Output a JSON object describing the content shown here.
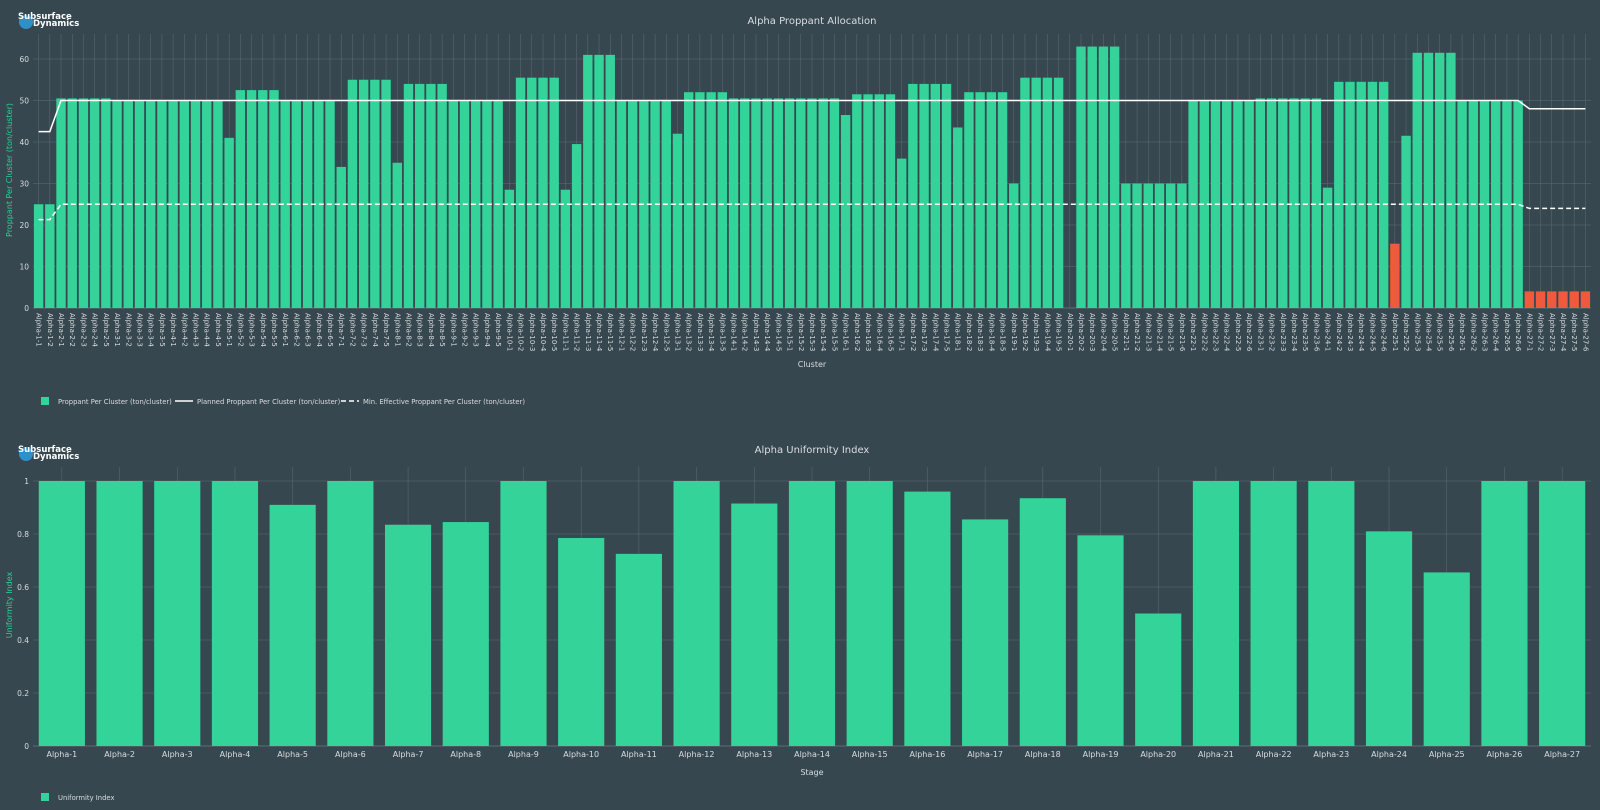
{
  "brand": {
    "line1": "Subsurface",
    "line2": "Dynamics",
    "logo_icon": "globe-logo-icon"
  },
  "colors": {
    "background": "#37474f",
    "bar": "#34d399",
    "bar_low": "#ef5a3c",
    "planned_line": "#ffffff",
    "grid": "#5d6e77",
    "title": "#d9dde0",
    "axis_title": "#2ecc95"
  },
  "chart_data": [
    {
      "type": "bar",
      "title": "Alpha Proppant Allocation",
      "xlabel": "Cluster",
      "ylabel": "Proppant Per Cluster (ton/cluster)",
      "ylim": [
        0,
        66
      ],
      "yticks": [
        0,
        10,
        20,
        30,
        40,
        50,
        60
      ],
      "grid": true,
      "legend_placement": "bottom-left",
      "stages": [
        {
          "stage": 1,
          "n": 2,
          "values": [
            25,
            25
          ],
          "planned": 42.5,
          "min_effective": 21.3
        },
        {
          "stage": 2,
          "n": 5,
          "values": [
            50.5,
            50.5,
            50.5,
            50.5,
            50.5
          ],
          "planned": 50,
          "min_effective": 25
        },
        {
          "stage": 3,
          "n": 5,
          "values": [
            50,
            50,
            50,
            50,
            50
          ],
          "planned": 50,
          "min_effective": 25
        },
        {
          "stage": 4,
          "n": 5,
          "values": [
            50,
            50,
            50,
            50,
            50
          ],
          "planned": 50,
          "min_effective": 25
        },
        {
          "stage": 5,
          "n": 5,
          "values": [
            41,
            52.5,
            52.5,
            52.5,
            52.5
          ],
          "planned": 50,
          "min_effective": 25
        },
        {
          "stage": 6,
          "n": 5,
          "values": [
            50,
            50,
            50,
            50,
            50
          ],
          "planned": 50,
          "min_effective": 25
        },
        {
          "stage": 7,
          "n": 5,
          "values": [
            34,
            55,
            55,
            55,
            55
          ],
          "planned": 50,
          "min_effective": 25
        },
        {
          "stage": 8,
          "n": 5,
          "values": [
            35,
            54,
            54,
            54,
            54
          ],
          "planned": 50,
          "min_effective": 25
        },
        {
          "stage": 9,
          "n": 5,
          "values": [
            50,
            50,
            50,
            50,
            50
          ],
          "planned": 50,
          "min_effective": 25
        },
        {
          "stage": 10,
          "n": 5,
          "values": [
            28.5,
            55.5,
            55.5,
            55.5,
            55.5
          ],
          "planned": 50,
          "min_effective": 25
        },
        {
          "stage": 11,
          "n": 5,
          "values": [
            28.5,
            39.5,
            61,
            61,
            61
          ],
          "planned": 50,
          "min_effective": 25
        },
        {
          "stage": 12,
          "n": 5,
          "values": [
            50,
            50,
            50,
            50,
            50
          ],
          "planned": 50,
          "min_effective": 25
        },
        {
          "stage": 13,
          "n": 5,
          "values": [
            42,
            52,
            52,
            52,
            52
          ],
          "planned": 50,
          "min_effective": 25
        },
        {
          "stage": 14,
          "n": 5,
          "values": [
            50.5,
            50.5,
            50.5,
            50.5,
            50.5
          ],
          "planned": 50,
          "min_effective": 25
        },
        {
          "stage": 15,
          "n": 5,
          "values": [
            50.5,
            50.5,
            50.5,
            50.5,
            50.5
          ],
          "planned": 50,
          "min_effective": 25
        },
        {
          "stage": 16,
          "n": 5,
          "values": [
            46.5,
            51.5,
            51.5,
            51.5,
            51.5
          ],
          "planned": 50,
          "min_effective": 25
        },
        {
          "stage": 17,
          "n": 5,
          "values": [
            36,
            54,
            54,
            54,
            54
          ],
          "planned": 50,
          "min_effective": 25
        },
        {
          "stage": 18,
          "n": 5,
          "values": [
            43.5,
            52,
            52,
            52,
            52
          ],
          "planned": 50,
          "min_effective": 25
        },
        {
          "stage": 19,
          "n": 5,
          "values": [
            30,
            55.5,
            55.5,
            55.5,
            55.5
          ],
          "planned": 50,
          "min_effective": 25
        },
        {
          "stage": 20,
          "n": 5,
          "values": [
            0,
            63,
            63,
            63,
            63
          ],
          "planned": 50,
          "min_effective": 25
        },
        {
          "stage": 21,
          "n": 6,
          "values": [
            30,
            30,
            30,
            30,
            30,
            30
          ],
          "planned": 50,
          "min_effective": 25
        },
        {
          "stage": 22,
          "n": 6,
          "values": [
            50,
            50,
            50,
            50,
            50,
            50
          ],
          "planned": 50,
          "min_effective": 25
        },
        {
          "stage": 23,
          "n": 6,
          "values": [
            50.5,
            50.5,
            50.5,
            50.5,
            50.5,
            50.5
          ],
          "planned": 50,
          "min_effective": 25
        },
        {
          "stage": 24,
          "n": 6,
          "values": [
            29,
            54.5,
            54.5,
            54.5,
            54.5,
            54.5
          ],
          "planned": 50,
          "min_effective": 25
        },
        {
          "stage": 25,
          "n": 6,
          "values": [
            15.5,
            41.5,
            61.5,
            61.5,
            61.5,
            61.5
          ],
          "planned": 50,
          "min_effective": 25
        },
        {
          "stage": 26,
          "n": 6,
          "values": [
            50,
            50,
            50,
            50,
            50,
            50
          ],
          "planned": 50,
          "min_effective": 25
        },
        {
          "stage": 27,
          "n": 6,
          "values": [
            4,
            4,
            4,
            4,
            4,
            4
          ],
          "planned": 48,
          "min_effective": 24
        }
      ],
      "legend": [
        {
          "label": "Proppant Per Cluster (ton/cluster)",
          "kind": "bar"
        },
        {
          "label": "Planned Proppant Per Cluster (ton/cluster)",
          "kind": "solid-line"
        },
        {
          "label": "Min. Effective Proppant Per Cluster (ton/cluster)",
          "kind": "dashed-line"
        }
      ]
    },
    {
      "type": "bar",
      "title": "Alpha Uniformity Index",
      "xlabel": "Stage",
      "ylabel": "Uniformity Index",
      "ylim": [
        0,
        1.05
      ],
      "yticks": [
        0,
        0.2,
        0.4,
        0.6,
        0.8,
        1
      ],
      "ytick_labels": [
        "0",
        "0.2",
        "0.4",
        "0.6",
        "0.8",
        "1"
      ],
      "grid": true,
      "legend_placement": "bottom-left",
      "categories": [
        "Alpha-1",
        "Alpha-2",
        "Alpha-3",
        "Alpha-4",
        "Alpha-5",
        "Alpha-6",
        "Alpha-7",
        "Alpha-8",
        "Alpha-9",
        "Alpha-10",
        "Alpha-11",
        "Alpha-12",
        "Alpha-13",
        "Alpha-14",
        "Alpha-15",
        "Alpha-16",
        "Alpha-17",
        "Alpha-18",
        "Alpha-19",
        "Alpha-20",
        "Alpha-21",
        "Alpha-22",
        "Alpha-23",
        "Alpha-24",
        "Alpha-25",
        "Alpha-26",
        "Alpha-27"
      ],
      "values": [
        1,
        1,
        1,
        1,
        0.91,
        1,
        0.835,
        0.845,
        1,
        0.785,
        0.725,
        1,
        0.915,
        1,
        1,
        0.96,
        0.855,
        0.935,
        0.795,
        0.5,
        1,
        1,
        1,
        0.81,
        0.655,
        1,
        1
      ],
      "legend": [
        {
          "label": "Uniformity Index",
          "kind": "bar"
        }
      ]
    }
  ]
}
